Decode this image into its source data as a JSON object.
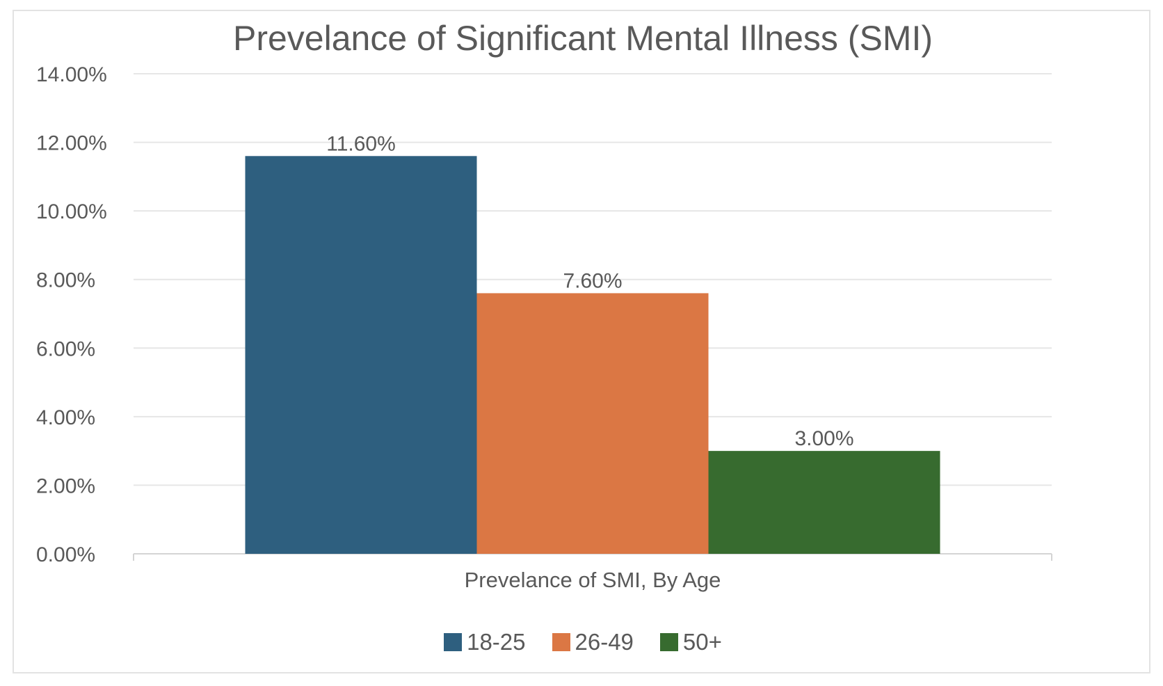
{
  "chart_data": {
    "type": "bar",
    "title": "Prevelance of Significant Mental Illness (SMI)",
    "xlabel": "Prevelance of SMI, By Age",
    "ylabel": "",
    "categories": [
      "Prevelance of SMI, By Age"
    ],
    "series": [
      {
        "name": "18-25",
        "values": [
          11.6
        ],
        "label": "11.60%",
        "color": "#2e5f7f"
      },
      {
        "name": "26-49",
        "values": [
          7.6
        ],
        "label": "7.60%",
        "color": "#db7744"
      },
      {
        "name": "50+",
        "values": [
          3.0
        ],
        "label": "3.00%",
        "color": "#376b2f"
      }
    ],
    "ylim": [
      0,
      14
    ],
    "yticks": [
      0,
      2,
      4,
      6,
      8,
      10,
      12,
      14
    ],
    "ytick_labels": [
      "0.00%",
      "2.00%",
      "4.00%",
      "6.00%",
      "8.00%",
      "10.00%",
      "12.00%",
      "14.00%"
    ],
    "grid": true,
    "legend_position": "bottom"
  }
}
